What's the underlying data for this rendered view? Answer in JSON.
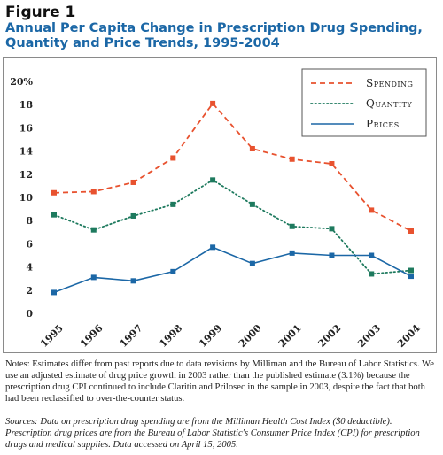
{
  "figure_label": "Figure 1",
  "title": "Annual Per Capita Change in Prescription Drug Spending, Quantity and Price Trends, 1995-2004",
  "notes": "Notes: Estimates differ from past reports due to data revisions by Milliman and the Bureau of Labor Statistics. We use an adjusted estimate of drug price growth in 2003 rather than the published estimate (3.1%) because the prescription drug CPI continued to include Claritin and Prilosec in the sample in 2003, despite the fact that both had been reclassified to over-the-counter status.",
  "sources": "Sources: Data on prescription drug spending are from the Milliman Health Cost Index ($0 deductible). Prescription drug prices are from the Bureau of Labor Statistic's Consumer Price Index (CPI) for prescription drugs and medical supplies. Data accessed on April 15, 2005.",
  "colors": {
    "spending": "#e8522f",
    "quantity": "#1e7a5e",
    "prices": "#1b67a6",
    "title": "#1b67a6"
  },
  "chart_data": {
    "type": "line",
    "title": "",
    "xlabel": "",
    "ylabel": "",
    "x": [
      "1995",
      "1996",
      "1997",
      "1998",
      "1999",
      "2000",
      "2001",
      "2002",
      "2003",
      "2004"
    ],
    "ylim": [
      0,
      20
    ],
    "yticks": [
      0,
      2,
      4,
      6,
      8,
      10,
      12,
      14,
      16,
      18,
      20
    ],
    "ytick_labels": [
      "0",
      "2",
      "4",
      "6",
      "8",
      "10",
      "12",
      "14",
      "16",
      "18",
      "20%"
    ],
    "grid": false,
    "legend_position": "top-right",
    "series": [
      {
        "name": "Spending",
        "style": "dashed",
        "marker": "square",
        "values": [
          10.4,
          10.5,
          11.3,
          13.4,
          18.1,
          14.2,
          13.3,
          12.9,
          8.9,
          7.1
        ]
      },
      {
        "name": "Quantity",
        "style": "dotted",
        "marker": "square",
        "values": [
          8.5,
          7.2,
          8.4,
          9.4,
          11.5,
          9.4,
          7.5,
          7.3,
          3.4,
          3.7
        ]
      },
      {
        "name": "Prices",
        "style": "solid",
        "marker": "square",
        "values": [
          1.8,
          3.1,
          2.8,
          3.6,
          5.7,
          4.3,
          5.2,
          5.0,
          5.0,
          3.2
        ]
      }
    ]
  }
}
